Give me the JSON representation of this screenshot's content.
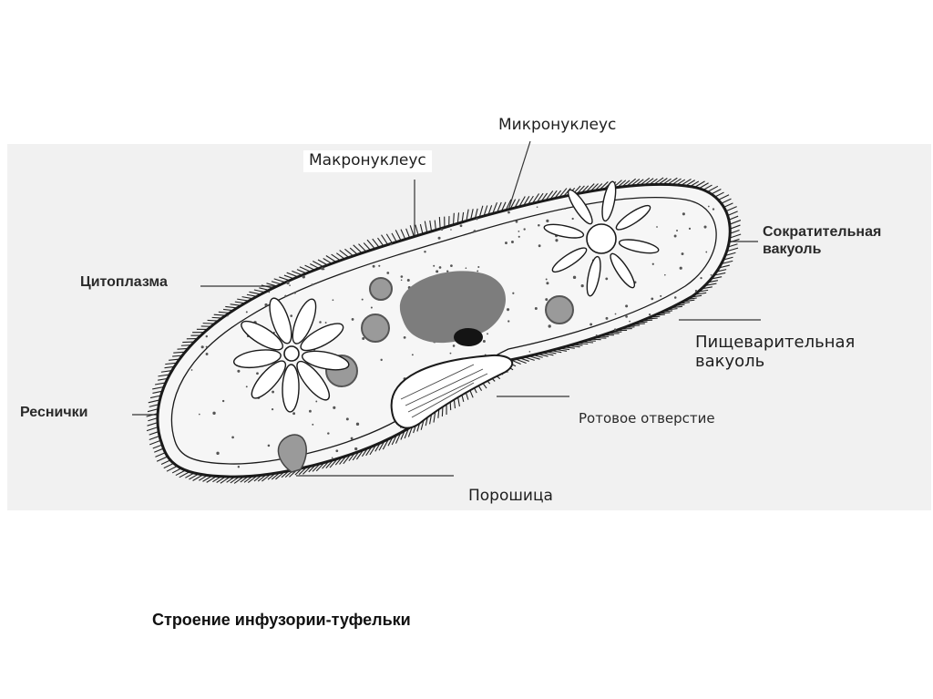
{
  "labels": {
    "macronucleus": "Макронуклеус",
    "micronucleus": "Микронуклеус",
    "cytoplasm": "Цитоплазма",
    "cilia": "Реснички",
    "contractile_vacuole": [
      "Сократительная",
      "вакуоль"
    ],
    "digestive_vacuole": [
      "Пищеварительная",
      "вакуоль"
    ],
    "mouth_opening": "Ротовое отверстие",
    "anal_pore": "Порошица"
  },
  "caption": "Строение инфузории-туфельки",
  "colors": {
    "outline": "#1a1a1a",
    "nucleus": "#7d7d7d",
    "micronucleus": "#141414",
    "vacuole_fill": "#9a9a9a",
    "background_band": "#f1f1f1"
  }
}
